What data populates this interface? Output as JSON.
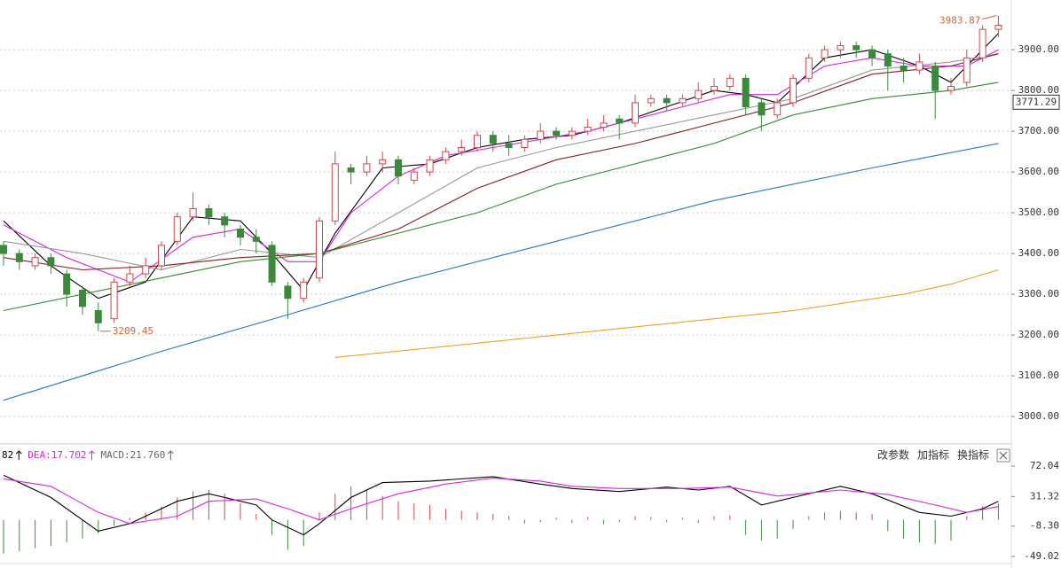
{
  "chart_data": [
    {
      "type": "candlestick",
      "up_color": "#d9434a",
      "down_color": "#3a8a3a",
      "candles": [
        [
          3420,
          3430,
          3370,
          3400
        ],
        [
          3400,
          3410,
          3360,
          3380
        ],
        [
          3370,
          3400,
          3360,
          3390
        ],
        [
          3390,
          3400,
          3350,
          3370
        ],
        [
          3350,
          3360,
          3270,
          3300
        ],
        [
          3310,
          3320,
          3250,
          3270
        ],
        [
          3260,
          3280,
          3209.45,
          3230
        ],
        [
          3240,
          3340,
          3230,
          3330
        ],
        [
          3330,
          3370,
          3320,
          3350
        ],
        [
          3350,
          3390,
          3340,
          3370
        ],
        [
          3370,
          3430,
          3360,
          3420
        ],
        [
          3430,
          3500,
          3420,
          3490
        ],
        [
          3490,
          3550,
          3480,
          3510
        ],
        [
          3510,
          3520,
          3470,
          3490
        ],
        [
          3490,
          3500,
          3440,
          3470
        ],
        [
          3460,
          3470,
          3420,
          3440
        ],
        [
          3440,
          3460,
          3400,
          3430
        ],
        [
          3420,
          3430,
          3320,
          3330
        ],
        [
          3320,
          3330,
          3240,
          3290
        ],
        [
          3290,
          3340,
          3280,
          3330
        ],
        [
          3340,
          3490,
          3330,
          3480
        ],
        [
          3480,
          3650,
          3470,
          3620
        ],
        [
          3610,
          3620,
          3570,
          3600
        ],
        [
          3600,
          3640,
          3590,
          3620
        ],
        [
          3620,
          3650,
          3600,
          3630
        ],
        [
          3630,
          3640,
          3570,
          3590
        ],
        [
          3580,
          3610,
          3570,
          3600
        ],
        [
          3600,
          3640,
          3590,
          3630
        ],
        [
          3630,
          3660,
          3620,
          3650
        ],
        [
          3650,
          3680,
          3640,
          3660
        ],
        [
          3660,
          3700,
          3650,
          3690
        ],
        [
          3690,
          3700,
          3650,
          3670
        ],
        [
          3670,
          3690,
          3640,
          3660
        ],
        [
          3660,
          3690,
          3650,
          3680
        ],
        [
          3680,
          3720,
          3670,
          3700
        ],
        [
          3700,
          3710,
          3680,
          3690
        ],
        [
          3690,
          3710,
          3680,
          3700
        ],
        [
          3700,
          3730,
          3690,
          3710
        ],
        [
          3710,
          3740,
          3700,
          3720
        ],
        [
          3730,
          3740,
          3680,
          3720
        ],
        [
          3720,
          3790,
          3710,
          3770
        ],
        [
          3770,
          3790,
          3760,
          3780
        ],
        [
          3780,
          3790,
          3750,
          3770
        ],
        [
          3770,
          3790,
          3760,
          3780
        ],
        [
          3780,
          3820,
          3770,
          3800
        ],
        [
          3800,
          3830,
          3790,
          3810
        ],
        [
          3810,
          3840,
          3800,
          3830
        ],
        [
          3830,
          3840,
          3740,
          3760
        ],
        [
          3770,
          3780,
          3700,
          3740
        ],
        [
          3740,
          3780,
          3730,
          3770
        ],
        [
          3770,
          3840,
          3760,
          3830
        ],
        [
          3830,
          3890,
          3820,
          3880
        ],
        [
          3880,
          3910,
          3870,
          3900
        ],
        [
          3900,
          3920,
          3880,
          3910
        ],
        [
          3910,
          3920,
          3880,
          3900
        ],
        [
          3900,
          3910,
          3860,
          3880
        ],
        [
          3890,
          3900,
          3800,
          3860
        ],
        [
          3860,
          3880,
          3820,
          3850
        ],
        [
          3850,
          3890,
          3840,
          3870
        ],
        [
          3860,
          3870,
          3730,
          3800
        ],
        [
          3800,
          3830,
          3790,
          3810
        ],
        [
          3820,
          3900,
          3810,
          3880
        ],
        [
          3880,
          3960,
          3870,
          3950
        ],
        [
          3950,
          3983.87,
          3930,
          3960
        ]
      ],
      "lines": [
        {
          "color": "#000000",
          "x": [
            0,
            3,
            6,
            9,
            12,
            15,
            17,
            19,
            21,
            24,
            27,
            30,
            33,
            36,
            39,
            42,
            45,
            47,
            49,
            52,
            55,
            58,
            60,
            63
          ],
          "values": [
            3480,
            3370,
            3290,
            3330,
            3490,
            3480,
            3400,
            3310,
            3450,
            3610,
            3620,
            3660,
            3680,
            3690,
            3720,
            3760,
            3800,
            3790,
            3770,
            3880,
            3900,
            3860,
            3820,
            3940
          ]
        },
        {
          "color": "#e020e0",
          "x": [
            0,
            4,
            8,
            12,
            15,
            18,
            20,
            22,
            25,
            28,
            31,
            34,
            37,
            40,
            43,
            46,
            49,
            52,
            55,
            58,
            61,
            63
          ],
          "values": [
            3470,
            3390,
            3330,
            3440,
            3460,
            3380,
            3380,
            3500,
            3590,
            3640,
            3660,
            3680,
            3700,
            3730,
            3760,
            3790,
            3790,
            3860,
            3880,
            3860,
            3860,
            3900
          ]
        },
        {
          "color": "#999999",
          "x": [
            0,
            5,
            10,
            15,
            20,
            25,
            30,
            35,
            40,
            45,
            50,
            55,
            60,
            63
          ],
          "values": [
            3430,
            3400,
            3360,
            3410,
            3390,
            3500,
            3610,
            3660,
            3700,
            3740,
            3780,
            3850,
            3870,
            3890
          ]
        },
        {
          "color": "#8b1a1a",
          "x": [
            0,
            5,
            10,
            15,
            20,
            25,
            30,
            35,
            40,
            45,
            50,
            55,
            60,
            63
          ],
          "values": [
            3390,
            3360,
            3370,
            3390,
            3400,
            3460,
            3560,
            3630,
            3670,
            3720,
            3770,
            3840,
            3860,
            3890
          ]
        },
        {
          "color": "#2e8b2e",
          "x": [
            0,
            10,
            15,
            20,
            25,
            30,
            35,
            40,
            45,
            50,
            55,
            60,
            63
          ],
          "values": [
            3260,
            3340,
            3380,
            3400,
            3450,
            3500,
            3570,
            3620,
            3670,
            3740,
            3780,
            3800,
            3820
          ]
        },
        {
          "color": "#1e78d0",
          "x": [
            0,
            10,
            18,
            25,
            35,
            45,
            55,
            63
          ],
          "values": [
            3040,
            3160,
            3250,
            3330,
            3430,
            3530,
            3610,
            3670
          ]
        },
        {
          "color": "#f0a020",
          "x": [
            21,
            30,
            40,
            50,
            57,
            60,
            63
          ],
          "values": [
            3145,
            3180,
            3220,
            3260,
            3300,
            3325,
            3360
          ]
        }
      ],
      "high_label": 3983.87,
      "low_label": 3209.45,
      "label_color": "#e0622a",
      "cursor_label": 3771.29,
      "ylim": [
        2935,
        4022
      ],
      "yticks": [
        {
          "value": 3000,
          "label": "3000.00"
        },
        {
          "value": 3100,
          "label": "3100.00"
        },
        {
          "value": 3200,
          "label": "3200.00"
        },
        {
          "value": 3300,
          "label": "3300.00"
        },
        {
          "value": 3400,
          "label": "3400.00"
        },
        {
          "value": 3500,
          "label": "3500.00"
        },
        {
          "value": 3600,
          "label": "3600.00"
        },
        {
          "value": 3700,
          "label": "3700.00"
        },
        {
          "value": 3800,
          "label": "3800.00"
        },
        {
          "value": 3900,
          "label": "3900.00"
        }
      ],
      "grid": true
    },
    {
      "type": "macd",
      "up_color": "#d9434a",
      "down_color": "#3a8a3a",
      "header": [
        {
          "text": "82",
          "color": "#000000"
        },
        {
          "text": "DEA:17.702",
          "color": "#e020e0"
        },
        {
          "text": "MACD:21.760",
          "color": "#666666"
        }
      ],
      "buttons": [
        "改参数",
        "加指标",
        "换指标"
      ],
      "histogram": [
        -45,
        -42,
        -38,
        -35,
        -30,
        -25,
        -18,
        -8,
        3,
        10,
        18,
        30,
        38,
        40,
        35,
        22,
        8,
        -20,
        -40,
        -35,
        10,
        35,
        45,
        40,
        32,
        25,
        22,
        20,
        15,
        12,
        10,
        8,
        5,
        -5,
        -3,
        3,
        -4,
        4,
        -6,
        -3,
        5,
        4,
        -3,
        3,
        -4,
        5,
        6,
        -20,
        -28,
        -25,
        -12,
        5,
        10,
        12,
        10,
        8,
        -15,
        -25,
        -30,
        -32,
        -28,
        5,
        18,
        22
      ],
      "lines": [
        {
          "color": "#000000",
          "x": [
            0,
            3,
            6,
            8,
            11,
            13,
            16,
            17,
            19,
            20,
            22,
            24,
            27,
            31,
            34,
            36,
            39,
            42,
            44,
            46,
            48,
            50,
            53,
            55,
            58,
            60,
            62,
            63
          ],
          "values": [
            60,
            30,
            -15,
            -5,
            25,
            35,
            20,
            0,
            -20,
            -5,
            30,
            50,
            52,
            58,
            48,
            42,
            38,
            44,
            40,
            45,
            20,
            30,
            45,
            35,
            10,
            5,
            15,
            25
          ]
        },
        {
          "color": "#e020e0",
          "x": [
            0,
            3,
            6,
            8,
            11,
            13,
            16,
            18,
            20,
            22,
            25,
            28,
            31,
            34,
            36,
            39,
            43,
            46,
            49,
            53,
            56,
            59,
            61,
            63
          ],
          "values": [
            55,
            45,
            10,
            -5,
            5,
            25,
            28,
            15,
            0,
            15,
            35,
            48,
            56,
            52,
            45,
            42,
            42,
            44,
            32,
            40,
            34,
            20,
            10,
            18
          ]
        }
      ],
      "ylim": [
        -58.5,
        79.2
      ],
      "yticks": [
        72.04,
        31.32,
        {
          "value": -8.3,
          "label": "-8.30"
        },
        -49.02
      ]
    }
  ]
}
